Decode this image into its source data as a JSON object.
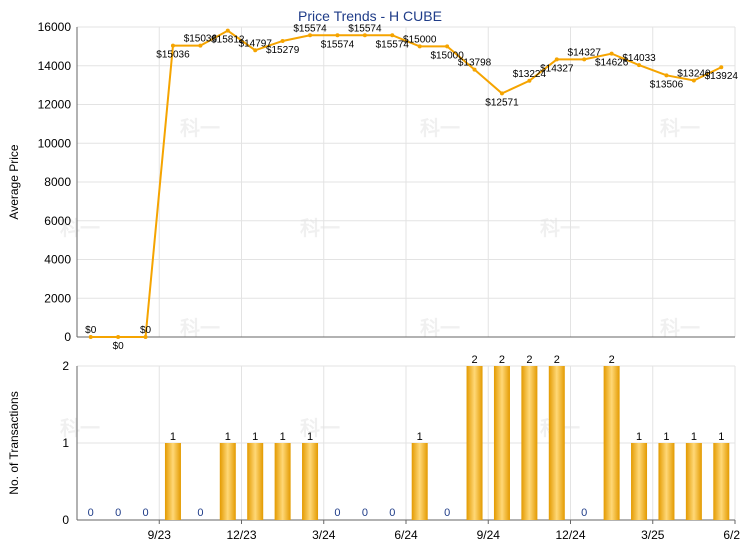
{
  "chart_data": [
    {
      "type": "line",
      "title": "Price Trends - H CUBE",
      "ylabel": "Average Price",
      "ylim": [
        0,
        16000
      ],
      "yticks": [
        0,
        2000,
        4000,
        6000,
        8000,
        10000,
        12000,
        14000,
        16000
      ],
      "grid": true,
      "series": [
        {
          "color": "#f5a400",
          "values": [
            0,
            0,
            0,
            15036,
            15036,
            15812,
            14797,
            15279,
            15574,
            15574,
            15574,
            15574,
            15000,
            15000,
            13798,
            12571,
            13224,
            14327,
            14327,
            14626,
            14033,
            13506,
            13240,
            13924
          ],
          "labels": [
            "$0",
            "$0",
            "$0",
            "$15036",
            "$15036",
            "$15812",
            "$14797",
            "$15279",
            "$15574",
            "$15574",
            "$15574",
            "$15574",
            "$15000",
            "$15000",
            "$13798",
            "$12571",
            "$13224",
            "$14327",
            "$14327",
            "$14626",
            "$14033",
            "$13506",
            "$13240",
            "$13924"
          ]
        }
      ]
    },
    {
      "type": "bar",
      "ylabel": "No. of Transactions",
      "ylim": [
        0,
        2
      ],
      "yticks": [
        0,
        1,
        2
      ],
      "grid": true,
      "bar_color": "#f5a400",
      "values": [
        0,
        0,
        0,
        1,
        0,
        1,
        1,
        1,
        1,
        0,
        0,
        0,
        1,
        0,
        2,
        2,
        2,
        2,
        0,
        2,
        1,
        1,
        1,
        1
      ],
      "x_tick_labels": [
        "9/23",
        "12/23",
        "3/24",
        "6/24",
        "9/24",
        "12/24",
        "3/25",
        "6/25"
      ]
    }
  ],
  "watermark": "科一"
}
